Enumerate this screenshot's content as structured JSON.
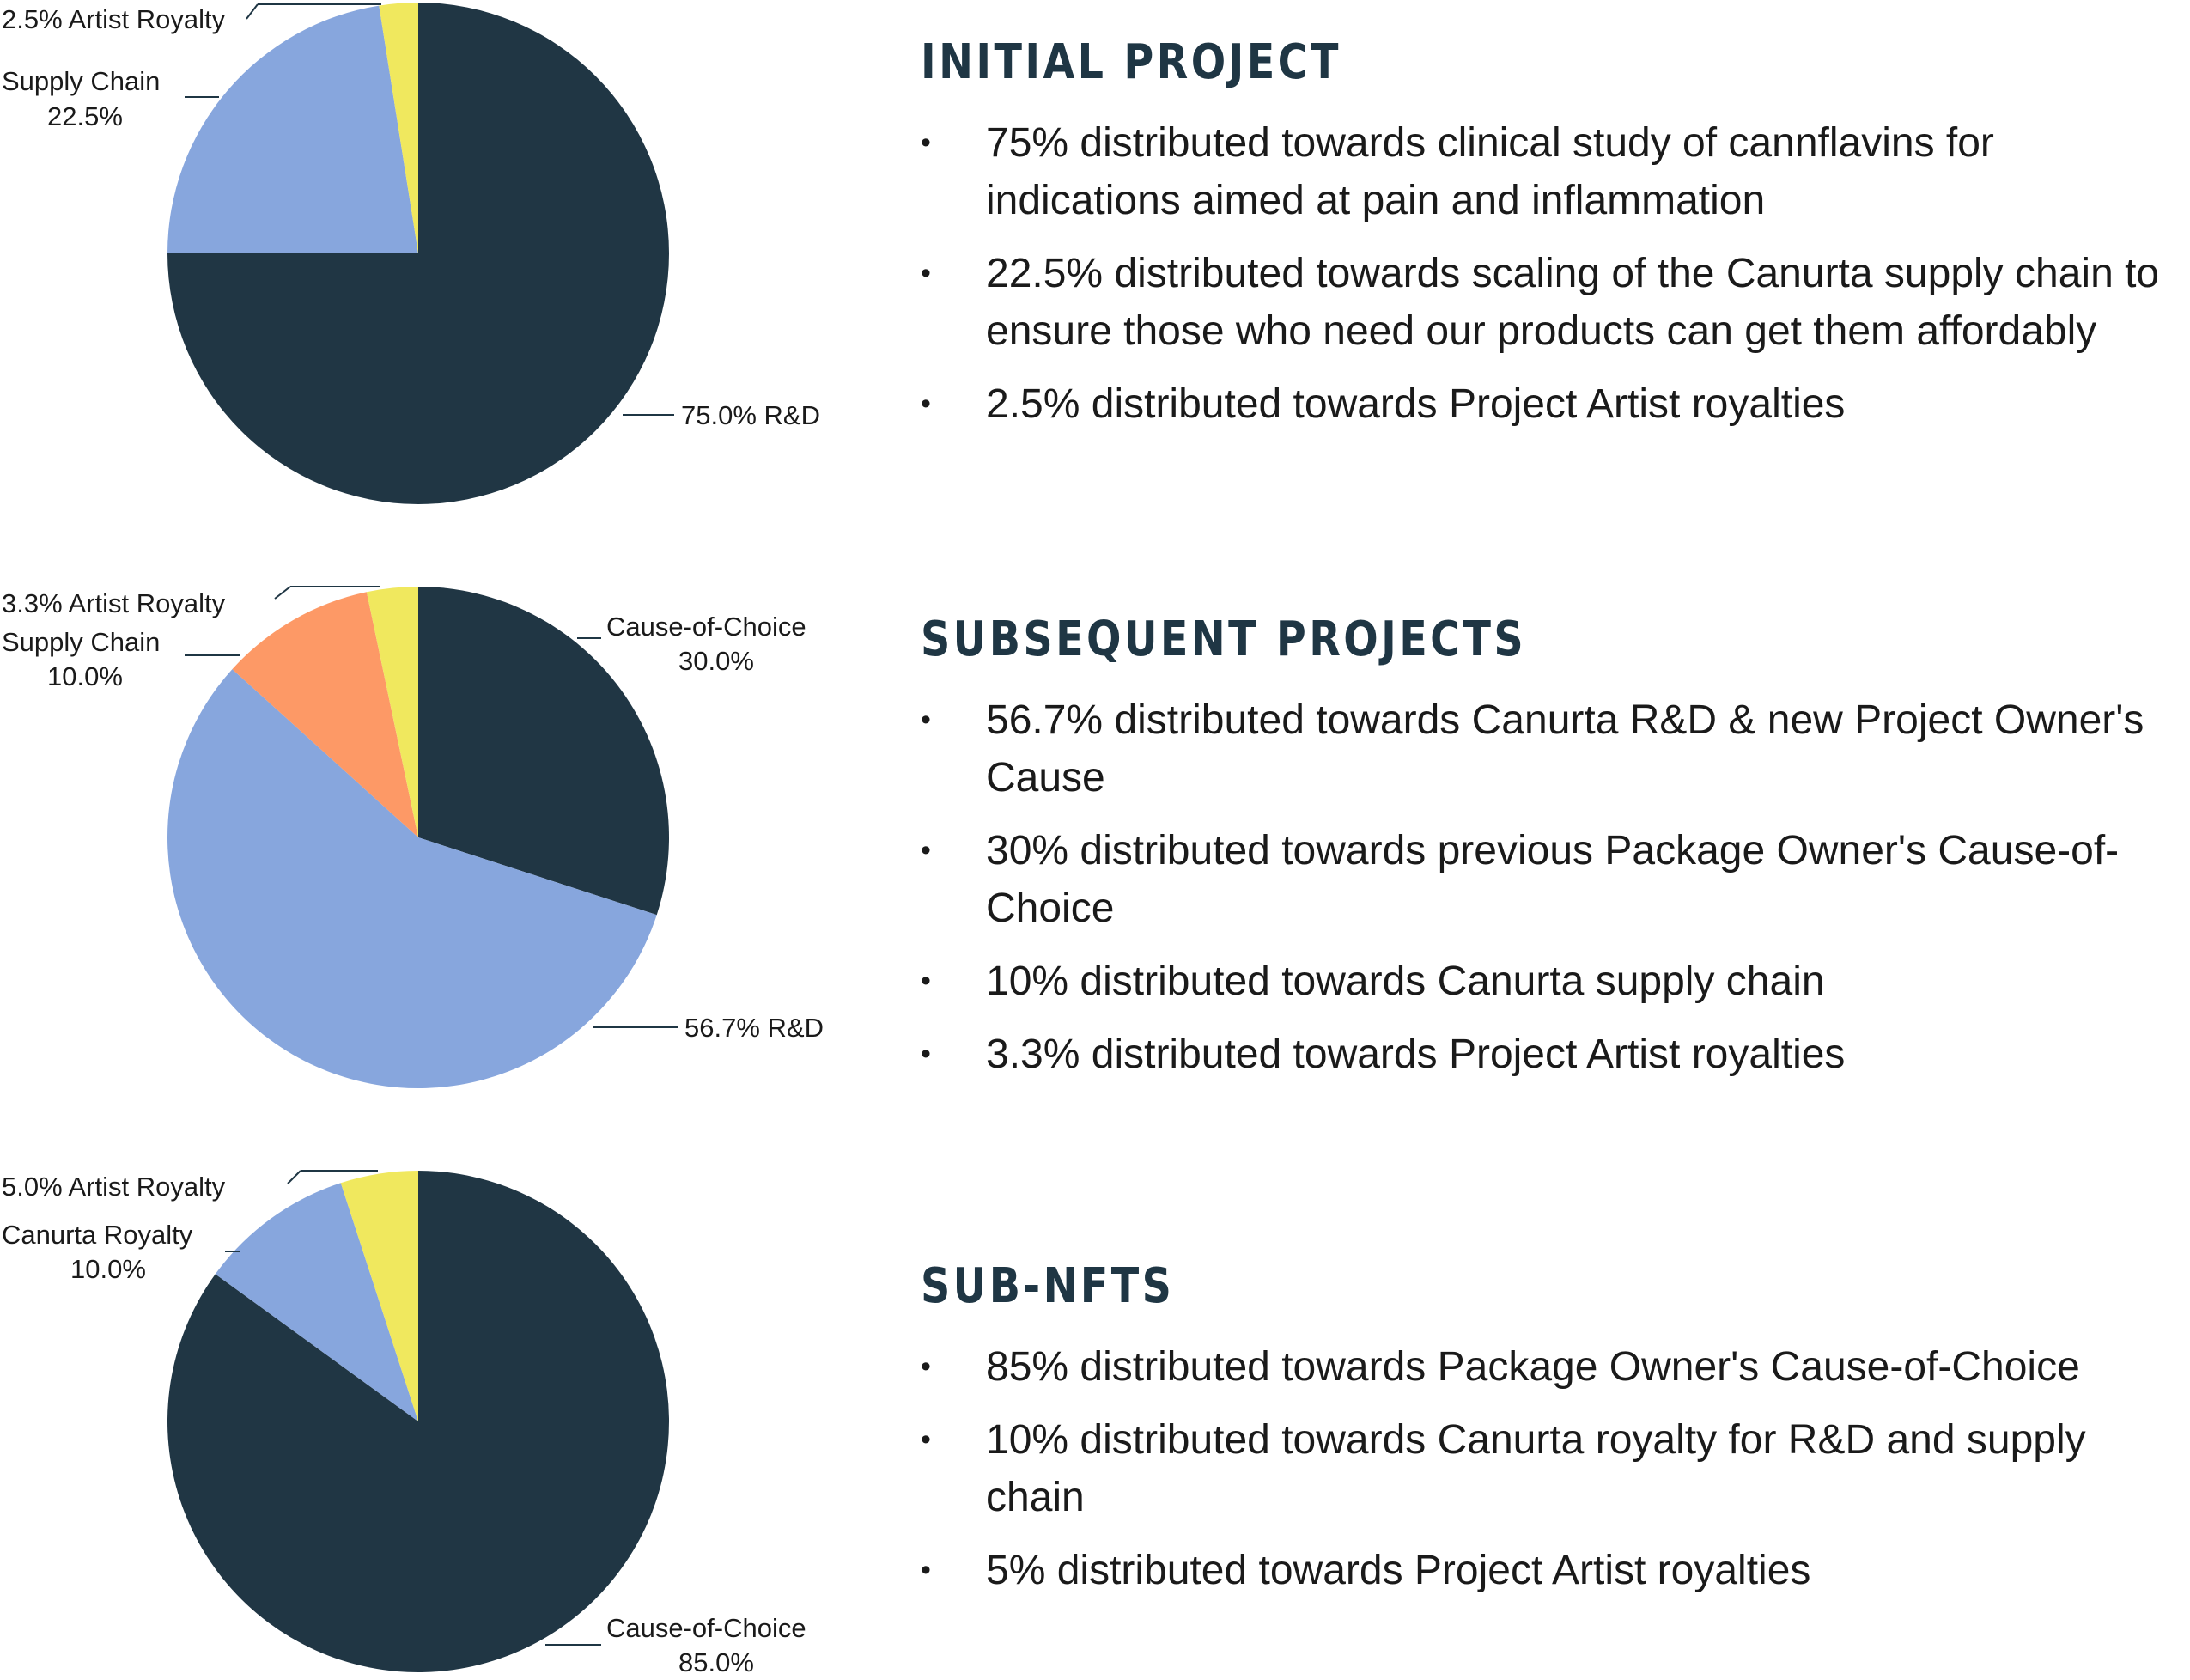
{
  "colors": {
    "navy": "#203644",
    "blue": "#87a6dd",
    "yellow": "#f0e85e",
    "orange": "#fd9966",
    "text": "#1a1a1a",
    "heading": "#1f3644"
  },
  "chart_data": [
    {
      "type": "pie",
      "slices": [
        {
          "label": "R&D",
          "value": 75.0,
          "display": "75.0% R&D",
          "color": "#203644"
        },
        {
          "label": "Supply Chain",
          "value": 22.5,
          "display": "Supply Chain 22.5%",
          "color": "#87a6dd"
        },
        {
          "label": "Artist Royalty",
          "value": 2.5,
          "display": "2.5% Artist Royalty",
          "color": "#f0e85e"
        }
      ]
    },
    {
      "type": "pie",
      "slices": [
        {
          "label": "Cause-of-Choice",
          "value": 30.0,
          "display": "Cause-of-Choice 30.0%",
          "color": "#203644"
        },
        {
          "label": "R&D",
          "value": 56.7,
          "display": "56.7% R&D",
          "color": "#87a6dd"
        },
        {
          "label": "Supply Chain",
          "value": 10.0,
          "display": "Supply Chain 10.0%",
          "color": "#fd9966"
        },
        {
          "label": "Artist Royalty",
          "value": 3.3,
          "display": "3.3% Artist Royalty",
          "color": "#f0e85e"
        }
      ]
    },
    {
      "type": "pie",
      "slices": [
        {
          "label": "Cause-of-Choice",
          "value": 85.0,
          "display": "Cause-of-Choice 85.0%",
          "color": "#203644"
        },
        {
          "label": "Canurta Royalty",
          "value": 10.0,
          "display": "Canurta Royalty 10.0%",
          "color": "#87a6dd"
        },
        {
          "label": "Artist Royalty",
          "value": 5.0,
          "display": "5.0% Artist Royalty",
          "color": "#f0e85e"
        }
      ]
    }
  ],
  "pie_labels": [
    {
      "artist": "2.5% Artist Royalty",
      "left_line1": "Supply Chain",
      "left_line2": "22.5%",
      "right_line1": "75.0% R&D",
      "right_line2": ""
    },
    {
      "artist": "3.3% Artist Royalty",
      "left_line1": "Supply Chain",
      "left_line2": "10.0%",
      "top_right_line1": "Cause-of-Choice",
      "top_right_line2": "30.0%",
      "right_line1": "56.7% R&D"
    },
    {
      "artist": "5.0% Artist Royalty",
      "left_line1": "Canurta Royalty",
      "left_line2": "10.0%",
      "right_line1": "Cause-of-Choice",
      "right_line2": "85.0%"
    }
  ],
  "sections": [
    {
      "title": "INITIAL PROJECT",
      "bullets": [
        "75% distributed towards clinical study of cannflavins for indications aimed at pain and inflammation",
        "22.5% distributed towards scaling of the Canurta supply chain to ensure those who need our products can get them affordably",
        "2.5% distributed towards Project Artist royalties"
      ]
    },
    {
      "title": "SUBSEQUENT PROJECTS",
      "bullets": [
        "56.7% distributed towards Canurta R&D & new Project Owner's Cause",
        "30% distributed towards previous Package Owner's Cause-of-Choice",
        "10% distributed towards Canurta supply chain",
        "3.3% distributed towards Project Artist royalties"
      ]
    },
    {
      "title": "SUB-NFTS",
      "bullets": [
        "85% distributed towards Package Owner's Cause-of-Choice",
        "10% distributed towards Canurta royalty for R&D and supply chain",
        "5% distributed towards Project Artist royalties"
      ]
    }
  ]
}
